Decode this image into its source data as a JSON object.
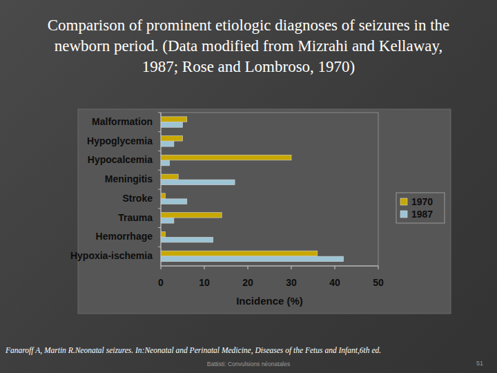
{
  "chart_data": {
    "type": "bar",
    "title": "Comparison of prominent etiologic diagnoses of seizures in the newborn period. (Data modified from Mizrahi and Kellaway, 1987; Rose and Lombroso, 1970)",
    "orientation": "horizontal",
    "categories": [
      "Malformation",
      "Hypoglycemia",
      "Hypocalcemia",
      "Meningitis",
      "Stroke",
      "Trauma",
      "Hemorrhage",
      "Hypoxia-ischemia"
    ],
    "series": [
      {
        "name": "1970",
        "color": "#c8a800",
        "values": [
          6,
          5,
          30,
          4,
          1,
          14,
          1,
          36
        ]
      },
      {
        "name": "1987",
        "color": "#9cc4d4",
        "values": [
          5,
          3,
          2,
          17,
          6,
          3,
          12,
          42
        ]
      }
    ],
    "x_label": "Incidence (%)",
    "xlim": [
      0,
      50
    ],
    "xticks": [
      0,
      10,
      20,
      30,
      40,
      50
    ],
    "legend": "right",
    "grid": false
  },
  "slide": {
    "citation": "Fanaroff A, Martin R.Neonatal seizures. In:Neonatal and Perinatal Medicine, Diseases of the Fetus and Infant,6th ed.",
    "footer": "Battisti: Convulsions néonatales",
    "page": "51"
  }
}
